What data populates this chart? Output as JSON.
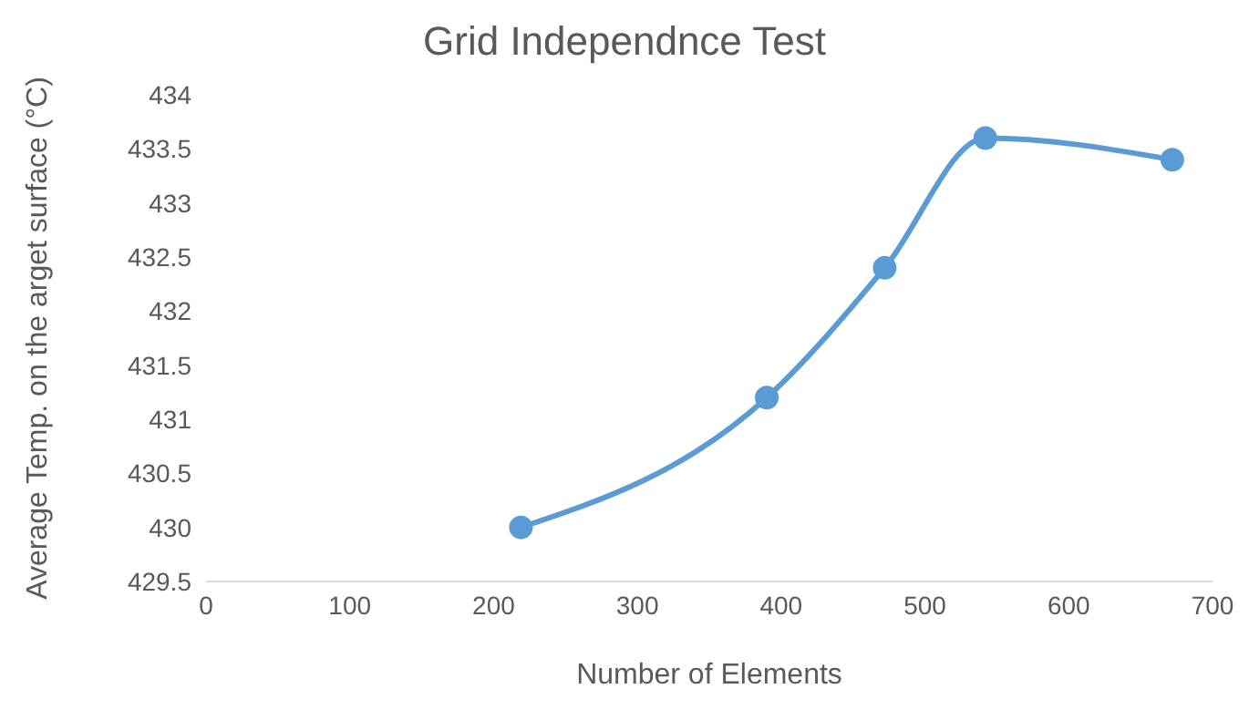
{
  "chart_data": {
    "type": "line",
    "title": "Grid Independnce Test",
    "xlabel": "Number of Elements",
    "ylabel": "Average Temp. on the arget surface (°C)",
    "x": [
      219,
      390,
      472,
      542,
      672
    ],
    "series": [
      {
        "color": "#5b9bd5",
        "values": [
          430.0,
          431.2,
          432.4,
          433.6,
          433.4
        ]
      }
    ],
    "xlim": [
      0,
      700
    ],
    "xticks": [
      0,
      100,
      200,
      300,
      400,
      500,
      600,
      700
    ],
    "ylim": [
      429.5,
      434
    ],
    "yticks": [
      429.5,
      430,
      430.5,
      431,
      431.5,
      432,
      432.5,
      433,
      433.5,
      434
    ],
    "grid": false,
    "legend": false,
    "marker": "circle",
    "line_style": "solid"
  }
}
